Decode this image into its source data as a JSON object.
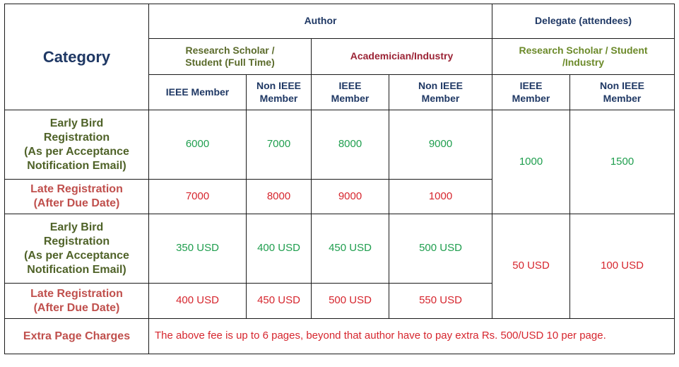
{
  "header": {
    "category": "Category",
    "author": "Author",
    "delegate": "Delegate (attendees)",
    "research_scholar_line1": "Research Scholar /",
    "research_scholar_line2": "Student (Full Time)",
    "academician": "Academician/Industry",
    "delegate_group_line1": "Research Scholar / Student",
    "delegate_group_line2": "/Industry",
    "ieee_member": "IEEE Member",
    "ieee": "IEEE",
    "member": "Member",
    "non_ieee": "Non IEEE"
  },
  "rows": {
    "inr_early": {
      "label": [
        "Early Bird",
        "Registration",
        "(As per Acceptance",
        "Notification Email)"
      ],
      "values": [
        "6000",
        "7000",
        "8000",
        "9000"
      ]
    },
    "inr_late": {
      "label": [
        "Late Registration",
        "(After Due Date)"
      ],
      "values": [
        "7000",
        "8000",
        "9000",
        "1000"
      ]
    },
    "inr_delegate": [
      "1000",
      "1500"
    ],
    "usd_early": {
      "label": [
        "Early Bird",
        "Registration",
        "(As per Acceptance",
        "Notification Email)"
      ],
      "values": [
        "350 USD",
        "400 USD",
        "450 USD",
        "500 USD"
      ]
    },
    "usd_late": {
      "label": [
        "Late Registration",
        "(After Due Date)"
      ],
      "values": [
        "400 USD",
        "450 USD",
        "500 USD",
        "550 USD"
      ]
    },
    "usd_delegate": [
      "50 USD",
      "100 USD"
    ]
  },
  "extra": {
    "label": "Extra Page Charges",
    "note": "The above fee is up to 6 pages, beyond that author have to pay extra Rs. 500/USD 10 per page."
  },
  "colors": {
    "navy": "#1f3864",
    "olive": "#5b6b2b",
    "maroon": "#9b2335",
    "green": "#1f9e4e",
    "red": "#d6262e"
  }
}
